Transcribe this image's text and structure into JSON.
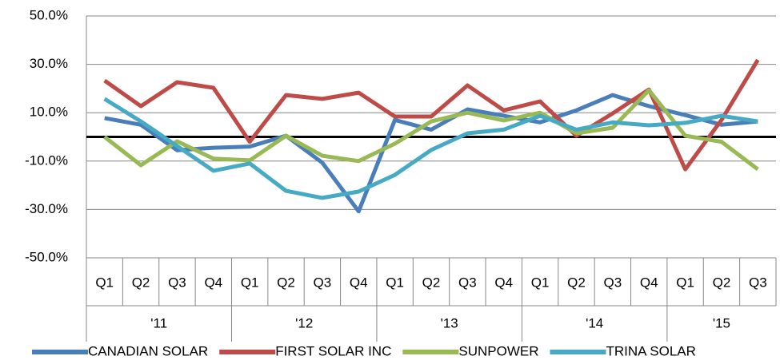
{
  "chart_data": {
    "type": "line",
    "categories": [
      "Q1",
      "Q2",
      "Q3",
      "Q4",
      "Q1",
      "Q2",
      "Q3",
      "Q4",
      "Q1",
      "Q2",
      "Q3",
      "Q4",
      "Q1",
      "Q2",
      "Q3",
      "Q4",
      "Q1",
      "Q2",
      "Q3"
    ],
    "category_groups": [
      "'11",
      "'12",
      "'13",
      "'14",
      "'15"
    ],
    "series": [
      {
        "name": "CANADIAN SOLAR",
        "color": "#4a7ebb",
        "values": [
          7.8,
          5,
          -5.5,
          -4.5,
          -4,
          0.5,
          -10.7,
          -30.8,
          7,
          3,
          11.4,
          8.7,
          6,
          11,
          17.3,
          12.7,
          9,
          5,
          6.4
        ]
      },
      {
        "name": "FIRST SOLAR INC",
        "color": "#be4b48",
        "values": [
          23.3,
          12.7,
          22.6,
          20.3,
          -2,
          17.3,
          15.7,
          18.3,
          8.4,
          8.4,
          21.3,
          11,
          14.7,
          0.5,
          9.7,
          19.6,
          -13.4,
          7,
          31.8
        ]
      },
      {
        "name": "SUNPOWER",
        "color": "#98b954",
        "values": [
          0,
          -11.7,
          -1.8,
          -9,
          -9.7,
          0.5,
          -7.8,
          -10,
          -2.8,
          6.4,
          10,
          6.8,
          10,
          1.5,
          3.8,
          19.3,
          0.5,
          -2,
          -13.4
        ]
      },
      {
        "name": "TRINA SOLAR",
        "color": "#46aac5",
        "values": [
          15.7,
          6.4,
          -3.8,
          -14,
          -11,
          -22.3,
          -25.2,
          -22.6,
          -15.7,
          -5.4,
          1.5,
          3,
          8.7,
          3,
          6,
          4.8,
          5.8,
          8.7,
          6.4
        ]
      }
    ],
    "ylim": [
      -50,
      50
    ],
    "yticks": [
      {
        "value": -50,
        "label": "-50.0%"
      },
      {
        "value": -30,
        "label": "-30.0%"
      },
      {
        "value": -10,
        "label": "-10.0%"
      },
      {
        "value": 10,
        "label": "10.0%"
      },
      {
        "value": 30,
        "label": "30.0%"
      },
      {
        "value": 50,
        "label": "50.0%"
      }
    ],
    "grid": true,
    "legend": "bottom"
  }
}
